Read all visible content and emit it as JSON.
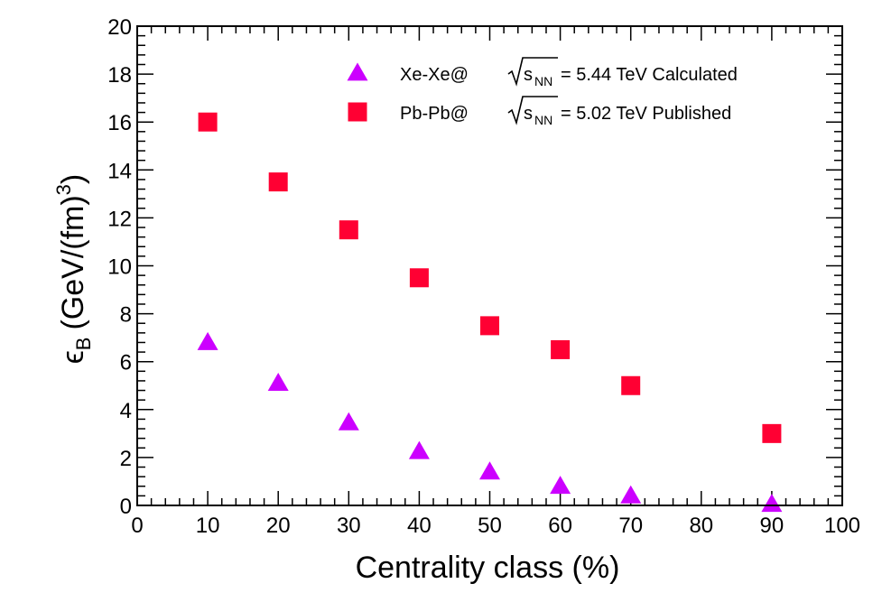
{
  "chart_data": {
    "type": "scatter",
    "xlabel": "Centrality class (%)",
    "ylabel": {
      "symbol": "ϵ",
      "subscript": "B",
      "unit": "(GeV/(fm)",
      "superscript": "3",
      "close": ")"
    },
    "xlim": [
      0,
      100
    ],
    "ylim": [
      0,
      20
    ],
    "x_ticks": [
      0,
      10,
      20,
      30,
      40,
      50,
      60,
      70,
      80,
      90,
      100
    ],
    "y_ticks": [
      0,
      2,
      4,
      6,
      8,
      10,
      12,
      14,
      16,
      18,
      20
    ],
    "grid": false,
    "legend_position": "top-right",
    "series": [
      {
        "name": "Xe-Xe@ √sNN = 5.44 TeV Calculated",
        "legend": {
          "system": "Xe-Xe@",
          "sqrt_var": "s",
          "sqrt_sub": "NN",
          "rest": "= 5.44 TeV Calculated"
        },
        "marker": "triangle",
        "color": "#cc00ff",
        "x": [
          10,
          20,
          30,
          40,
          50,
          60,
          70,
          90
        ],
        "y": [
          6.8,
          5.1,
          3.45,
          2.25,
          1.4,
          0.8,
          0.4,
          0.05
        ]
      },
      {
        "name": "Pb-Pb@ √sNN = 5.02 TeV Published",
        "legend": {
          "system": "Pb-Pb@",
          "sqrt_var": "s",
          "sqrt_sub": "NN",
          "rest": "= 5.02 TeV Published"
        },
        "marker": "square",
        "color": "#ff0033",
        "x": [
          10,
          20,
          30,
          40,
          50,
          60,
          70,
          90
        ],
        "y": [
          16.0,
          13.5,
          11.5,
          9.5,
          7.5,
          6.5,
          5.0,
          3.0
        ]
      }
    ]
  }
}
